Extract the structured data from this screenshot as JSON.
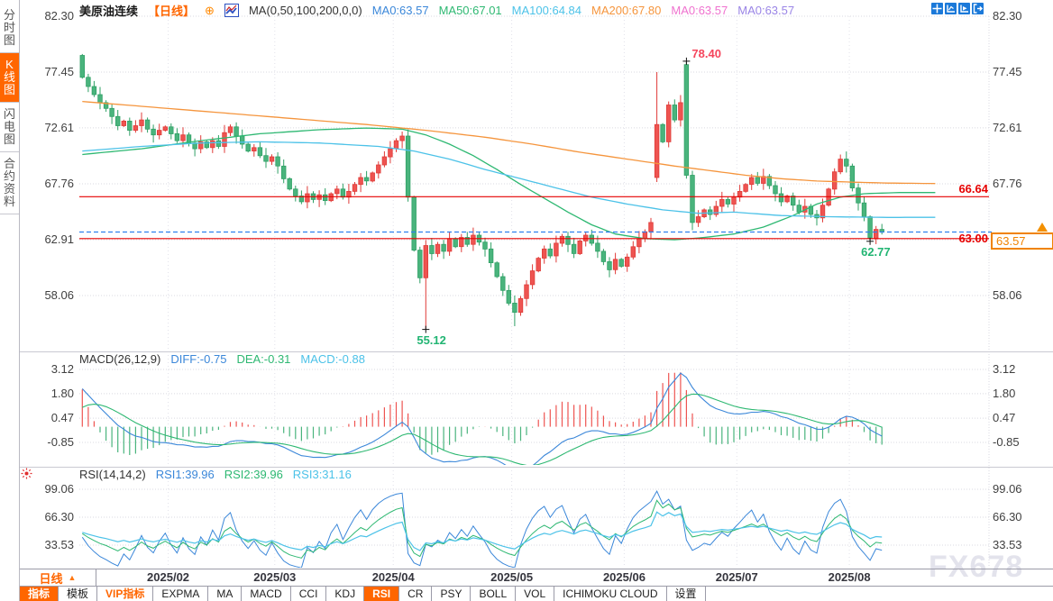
{
  "colors": {
    "accent_orange": "#ff6600",
    "up_fill": "#ee5451",
    "up_stroke": "#e03b38",
    "down_fill": "#4ab47d",
    "down_stroke": "#2fa065",
    "grid": "#d9d9e0",
    "axis_text": "#404040",
    "red_line": "#e60000",
    "price_line_blue": "#2f80ed",
    "badge_orange": "#f08300",
    "annotation_red": "#f5455c",
    "annotation_green": "#22b573",
    "marker_cross": "#111111",
    "hist_pos": "#ee5451",
    "hist_neg": "#4ab47d",
    "icon_blue": "#1b79d9",
    "watermark": "#e3e3ec"
  },
  "sidebar": {
    "tabs": [
      {
        "label": "分时图",
        "active": false
      },
      {
        "label": "K线图",
        "active": true
      },
      {
        "label": "闪电图",
        "active": false
      },
      {
        "label": "合约资料",
        "active": false
      }
    ]
  },
  "header": {
    "symbol": "美原油连续",
    "period_tag": "【日线】",
    "add_icon": "⊕",
    "ma_formula": "MA(0,50,100,200,0,0)",
    "ma_values": [
      {
        "text": "MA0:63.57",
        "color": "#3b87d9"
      },
      {
        "text": "MA50:67.01",
        "color": "#2eb872"
      },
      {
        "text": "MA100:64.84",
        "color": "#4cc2e8"
      },
      {
        "text": "MA200:67.80",
        "color": "#f5953d"
      },
      {
        "text": "MA0:63.57",
        "color": "#ef72cf"
      },
      {
        "text": "MA0:63.57",
        "color": "#9a85e6"
      }
    ]
  },
  "panels": {
    "macd": {
      "formula": "MACD(26,12,9)",
      "values": [
        {
          "text": "DIFF:-0.75",
          "color": "#3b87d9"
        },
        {
          "text": "DEA:-0.31",
          "color": "#2eb872"
        },
        {
          "text": "MACD:-0.88",
          "color": "#4cc2e8"
        }
      ],
      "ticks": [
        "3.12",
        "1.80",
        "0.47",
        "-0.85"
      ]
    },
    "rsi": {
      "formula": "RSI(14,14,2)",
      "values": [
        {
          "text": "RSI1:39.96",
          "color": "#3b87d9"
        },
        {
          "text": "RSI2:39.96",
          "color": "#2eb872"
        },
        {
          "text": "RSI3:31.16",
          "color": "#4cc2e8"
        }
      ],
      "ticks": [
        "99.06",
        "66.30",
        "33.53"
      ]
    }
  },
  "xaxis": {
    "period_button": "日线",
    "dropdown_arrow": "▲"
  },
  "toolbar": {
    "tabs": [
      {
        "label": "指标",
        "active": true
      },
      {
        "label": "模板"
      },
      {
        "label": "VIP指标",
        "accent": true
      },
      {
        "label": "EXPMA"
      },
      {
        "label": "MA"
      },
      {
        "label": "MACD"
      },
      {
        "label": "CCI"
      },
      {
        "label": "KDJ"
      },
      {
        "label": "RSI",
        "active": true
      },
      {
        "label": "CR"
      },
      {
        "label": "PSY"
      },
      {
        "label": "BOLL"
      },
      {
        "label": "VOL"
      },
      {
        "label": "ICHIMOKU CLOUD"
      },
      {
        "label": "设置"
      }
    ]
  },
  "watermark": "FX678",
  "chart_data": {
    "type": "candlestick",
    "symbol": "美原油连续",
    "interval": "日线",
    "price_axis_ticks": [
      "82.30",
      "77.45",
      "72.61",
      "67.76",
      "62.91",
      "58.06"
    ],
    "open_first": 78.9,
    "closes": [
      77.0,
      76.2,
      75.5,
      74.8,
      74.3,
      73.6,
      72.8,
      73.2,
      72.4,
      72.8,
      73.3,
      72.5,
      72.0,
      72.4,
      72.7,
      72.1,
      71.5,
      72.0,
      71.3,
      70.8,
      71.4,
      70.9,
      71.5,
      71.0,
      72.2,
      72.7,
      71.9,
      71.2,
      70.6,
      70.9,
      70.2,
      69.7,
      70.1,
      69.3,
      68.2,
      67.3,
      66.7,
      66.2,
      66.9,
      66.4,
      66.8,
      66.3,
      66.9,
      67.3,
      66.6,
      67.1,
      67.7,
      68.3,
      68.0,
      68.7,
      69.4,
      70.1,
      70.8,
      71.5,
      71.9,
      66.6,
      62.0,
      59.6,
      62.4,
      61.7,
      62.5,
      61.9,
      63.0,
      62.3,
      63.1,
      62.5,
      63.3,
      62.7,
      62.1,
      60.9,
      59.7,
      58.5,
      57.4,
      56.6,
      57.8,
      59.0,
      60.2,
      61.3,
      62.1,
      61.5,
      62.6,
      63.2,
      62.5,
      61.7,
      62.8,
      63.3,
      62.6,
      61.9,
      61.0,
      60.3,
      61.2,
      60.6,
      61.4,
      62.3,
      63.0,
      63.6,
      64.4,
      72.9,
      71.4,
      74.6,
      73.3,
      74.8,
      68.5,
      64.4,
      64.9,
      65.5,
      65.1,
      65.8,
      66.4,
      66.0,
      66.6,
      67.1,
      67.7,
      68.3,
      67.8,
      68.4,
      67.6,
      66.9,
      66.2,
      66.7,
      65.9,
      65.3,
      65.8,
      65.1,
      64.8,
      65.9,
      67.3,
      68.8,
      69.9,
      69.3,
      67.4,
      66.1,
      64.9,
      63.0,
      63.8,
      63.57
    ],
    "overrides": {
      "58": {
        "low": 55.12
      },
      "73": {
        "low": 55.4
      },
      "97": {
        "open": 68.3,
        "high": 77.45
      },
      "102": {
        "open": 78.1,
        "high": 78.4
      },
      "128": {
        "high": 70.3
      },
      "133": {
        "low": 62.77
      }
    },
    "ma_lines": [
      {
        "name": "MA50",
        "color": "#2eb872",
        "points": [
          [
            0,
            70.3
          ],
          [
            10,
            70.8
          ],
          [
            20,
            71.5
          ],
          [
            30,
            72.1
          ],
          [
            40,
            72.45
          ],
          [
            48,
            72.6
          ],
          [
            54,
            72.5
          ],
          [
            58,
            72.0
          ],
          [
            62,
            71.2
          ],
          [
            66,
            70.2
          ],
          [
            70,
            69.0
          ],
          [
            74,
            67.7
          ],
          [
            78,
            66.5
          ],
          [
            82,
            65.3
          ],
          [
            86,
            64.2
          ],
          [
            90,
            63.4
          ],
          [
            95,
            63.0
          ],
          [
            100,
            62.9
          ],
          [
            105,
            63.1
          ],
          [
            110,
            63.4
          ],
          [
            115,
            64.0
          ],
          [
            120,
            65.0
          ],
          [
            124,
            66.0
          ],
          [
            128,
            66.6
          ],
          [
            132,
            66.9
          ],
          [
            138,
            67.0
          ],
          [
            144,
            67.0
          ]
        ]
      },
      {
        "name": "MA100",
        "color": "#4cc2e8",
        "points": [
          [
            0,
            70.6
          ],
          [
            10,
            71.0
          ],
          [
            20,
            71.3
          ],
          [
            30,
            71.4
          ],
          [
            40,
            71.3
          ],
          [
            50,
            71.0
          ],
          [
            56,
            70.6
          ],
          [
            62,
            69.9
          ],
          [
            68,
            69.0
          ],
          [
            74,
            68.2
          ],
          [
            80,
            67.4
          ],
          [
            86,
            66.6
          ],
          [
            92,
            66.0
          ],
          [
            98,
            65.5
          ],
          [
            104,
            65.2
          ],
          [
            110,
            65.3
          ],
          [
            118,
            65.0
          ],
          [
            126,
            64.9
          ],
          [
            136,
            64.84
          ],
          [
            144,
            64.85
          ]
        ]
      },
      {
        "name": "MA200",
        "color": "#f5953d",
        "points": [
          [
            0,
            74.9
          ],
          [
            12,
            74.4
          ],
          [
            24,
            73.9
          ],
          [
            36,
            73.4
          ],
          [
            48,
            72.9
          ],
          [
            58,
            72.4
          ],
          [
            68,
            71.8
          ],
          [
            76,
            71.2
          ],
          [
            84,
            70.5
          ],
          [
            92,
            69.9
          ],
          [
            100,
            69.3
          ],
          [
            106,
            68.9
          ],
          [
            112,
            68.5
          ],
          [
            118,
            68.2
          ],
          [
            124,
            68.0
          ],
          [
            130,
            67.9
          ],
          [
            136,
            67.82
          ],
          [
            144,
            67.78
          ]
        ]
      }
    ],
    "hlines": [
      {
        "price": 66.64,
        "label": "66.64",
        "color": "#e60000"
      },
      {
        "price": 63.0,
        "label": "63.00",
        "color": "#e60000"
      }
    ],
    "price_line": {
      "price": 63.57,
      "color": "#2f80ed",
      "style": "dashed"
    },
    "last_price": "63.57",
    "annotations": [
      {
        "index": 102,
        "price": 78.4,
        "label": "78.40",
        "color": "#f5455c",
        "position": "above"
      },
      {
        "index": 58,
        "price": 55.12,
        "label": "55.12",
        "color": "#22b573",
        "position": "below"
      },
      {
        "index": 133,
        "price": 62.77,
        "label": "62.77",
        "color": "#22b573",
        "position": "below"
      }
    ],
    "macd": {
      "ticks": [
        "3.12",
        "1.80",
        "0.47",
        "-0.85"
      ],
      "params": [
        26,
        12,
        9
      ],
      "last": {
        "DIFF": -0.75,
        "DEA": -0.31,
        "MACD": -0.88
      }
    },
    "rsi": {
      "ticks": [
        "99.06",
        "66.30",
        "33.53"
      ],
      "params": [
        14,
        14,
        2
      ],
      "last": {
        "RSI1": 39.96,
        "RSI2": 39.96,
        "RSI3": 31.16
      }
    },
    "months": [
      {
        "label": "2025/02",
        "index": 15
      },
      {
        "label": "2025/03",
        "index": 33
      },
      {
        "label": "2025/04",
        "index": 53
      },
      {
        "label": "2025/05",
        "index": 73
      },
      {
        "label": "2025/06",
        "index": 92
      },
      {
        "label": "2025/07",
        "index": 111
      },
      {
        "label": "2025/08",
        "index": 130
      }
    ]
  }
}
